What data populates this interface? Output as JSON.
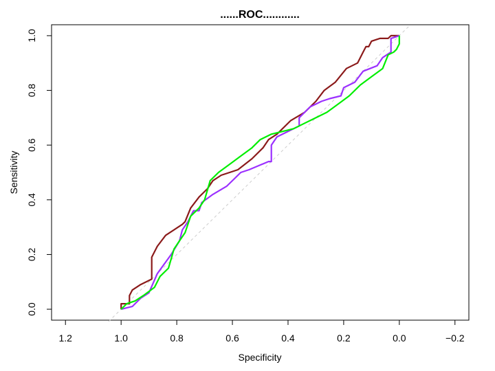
{
  "chart_data": {
    "type": "line",
    "title": "......ROC............",
    "xlabel": "Specificity",
    "ylabel": "Sensitivity",
    "x_reversed": true,
    "xlim": [
      1.25,
      -0.25
    ],
    "ylim": [
      -0.04,
      1.04
    ],
    "x_ticks": [
      1.2,
      1.0,
      0.8,
      0.6,
      0.4,
      0.2,
      0.0,
      -0.2
    ],
    "x_tick_labels": [
      "1.2",
      "1.0",
      "0.8",
      "0.6",
      "0.4",
      "0.2",
      "0.0",
      "−0.2"
    ],
    "y_ticks": [
      0.0,
      0.2,
      0.4,
      0.6,
      0.8,
      1.0
    ],
    "y_tick_labels": [
      "0.0",
      "0.2",
      "0.4",
      "0.6",
      "0.8",
      "1.0"
    ],
    "grid": false,
    "reference_line": {
      "color": "#cccccc",
      "from": [
        1.0,
        0.0
      ],
      "to": [
        0.0,
        1.0
      ]
    },
    "series": [
      {
        "color": "#8b1a1a",
        "points": [
          [
            1.0,
            0.0
          ],
          [
            1.0,
            0.02
          ],
          [
            0.97,
            0.02
          ],
          [
            0.97,
            0.05
          ],
          [
            0.96,
            0.07
          ],
          [
            0.93,
            0.09
          ],
          [
            0.89,
            0.11
          ],
          [
            0.89,
            0.19
          ],
          [
            0.87,
            0.23
          ],
          [
            0.84,
            0.27
          ],
          [
            0.78,
            0.31
          ],
          [
            0.77,
            0.32
          ],
          [
            0.75,
            0.37
          ],
          [
            0.72,
            0.41
          ],
          [
            0.69,
            0.44
          ],
          [
            0.67,
            0.47
          ],
          [
            0.64,
            0.49
          ],
          [
            0.58,
            0.51
          ],
          [
            0.53,
            0.55
          ],
          [
            0.49,
            0.59
          ],
          [
            0.47,
            0.62
          ],
          [
            0.44,
            0.64
          ],
          [
            0.39,
            0.69
          ],
          [
            0.34,
            0.72
          ],
          [
            0.3,
            0.76
          ],
          [
            0.27,
            0.8
          ],
          [
            0.23,
            0.83
          ],
          [
            0.19,
            0.88
          ],
          [
            0.15,
            0.9
          ],
          [
            0.13,
            0.94
          ],
          [
            0.12,
            0.96
          ],
          [
            0.11,
            0.96
          ],
          [
            0.1,
            0.98
          ],
          [
            0.07,
            0.99
          ],
          [
            0.04,
            0.99
          ],
          [
            0.03,
            1.0
          ],
          [
            0.0,
            1.0
          ]
        ]
      },
      {
        "color": "#9b30ff",
        "points": [
          [
            1.0,
            0.0
          ],
          [
            0.96,
            0.01
          ],
          [
            0.93,
            0.04
          ],
          [
            0.9,
            0.06
          ],
          [
            0.87,
            0.13
          ],
          [
            0.82,
            0.2
          ],
          [
            0.79,
            0.25
          ],
          [
            0.78,
            0.29
          ],
          [
            0.76,
            0.32
          ],
          [
            0.74,
            0.36
          ],
          [
            0.72,
            0.36
          ],
          [
            0.71,
            0.39
          ],
          [
            0.67,
            0.42
          ],
          [
            0.62,
            0.45
          ],
          [
            0.59,
            0.48
          ],
          [
            0.57,
            0.5
          ],
          [
            0.54,
            0.51
          ],
          [
            0.47,
            0.54
          ],
          [
            0.46,
            0.54
          ],
          [
            0.46,
            0.6
          ],
          [
            0.44,
            0.63
          ],
          [
            0.4,
            0.65
          ],
          [
            0.36,
            0.67
          ],
          [
            0.36,
            0.7
          ],
          [
            0.34,
            0.72
          ],
          [
            0.32,
            0.74
          ],
          [
            0.3,
            0.75
          ],
          [
            0.28,
            0.76
          ],
          [
            0.25,
            0.77
          ],
          [
            0.21,
            0.78
          ],
          [
            0.2,
            0.81
          ],
          [
            0.16,
            0.83
          ],
          [
            0.13,
            0.87
          ],
          [
            0.08,
            0.89
          ],
          [
            0.06,
            0.92
          ],
          [
            0.03,
            0.94
          ],
          [
            0.03,
            0.99
          ],
          [
            0.0,
            1.0
          ]
        ]
      },
      {
        "color": "#00ee00",
        "points": [
          [
            1.0,
            0.0
          ],
          [
            0.98,
            0.02
          ],
          [
            0.95,
            0.03
          ],
          [
            0.92,
            0.05
          ],
          [
            0.88,
            0.08
          ],
          [
            0.86,
            0.12
          ],
          [
            0.83,
            0.15
          ],
          [
            0.81,
            0.22
          ],
          [
            0.79,
            0.25
          ],
          [
            0.77,
            0.28
          ],
          [
            0.75,
            0.34
          ],
          [
            0.72,
            0.37
          ],
          [
            0.7,
            0.4
          ],
          [
            0.68,
            0.47
          ],
          [
            0.65,
            0.5
          ],
          [
            0.61,
            0.53
          ],
          [
            0.57,
            0.56
          ],
          [
            0.53,
            0.59
          ],
          [
            0.5,
            0.62
          ],
          [
            0.46,
            0.64
          ],
          [
            0.42,
            0.65
          ],
          [
            0.38,
            0.66
          ],
          [
            0.34,
            0.68
          ],
          [
            0.3,
            0.7
          ],
          [
            0.26,
            0.72
          ],
          [
            0.22,
            0.75
          ],
          [
            0.18,
            0.78
          ],
          [
            0.14,
            0.82
          ],
          [
            0.1,
            0.85
          ],
          [
            0.06,
            0.88
          ],
          [
            0.04,
            0.93
          ],
          [
            0.02,
            0.94
          ],
          [
            0.01,
            0.95
          ],
          [
            0.0,
            0.97
          ],
          [
            0.0,
            1.0
          ]
        ]
      }
    ]
  }
}
